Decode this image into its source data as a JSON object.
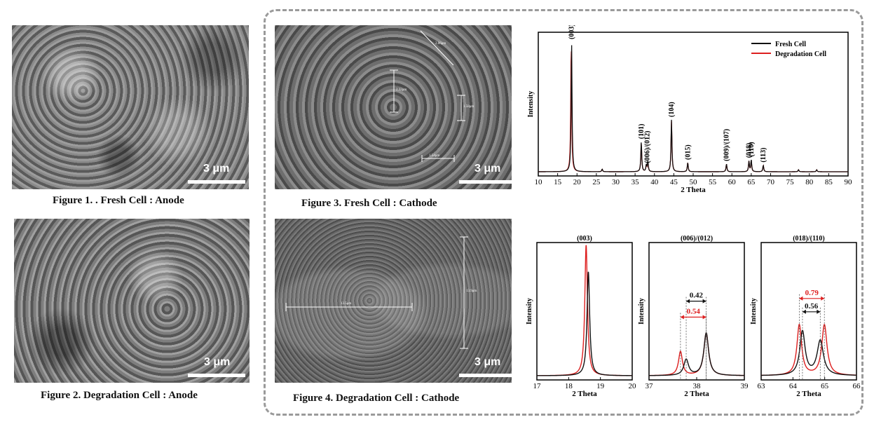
{
  "colors": {
    "fresh": "#111111",
    "degradation": "#dd1f1f",
    "frame": "#9a9a9a"
  },
  "figure1": {
    "caption": "Figure 1. . Fresh Cell : Anode",
    "scale_label": "3 μm"
  },
  "figure2": {
    "caption": "Figure 2. Degradation Cell : Anode",
    "scale_label": "3 μm"
  },
  "figure3": {
    "caption": "Figure 3. Fresh Cell : Cathode",
    "scale_label": "3 μm",
    "measurements": [
      "2.06μm",
      "2.32μm",
      "1.58μm",
      "1.54μm"
    ]
  },
  "figure4": {
    "caption": "Figure 4. Degradation Cell : Cathode",
    "scale_label": "3 μm",
    "measurements": [
      "13.5μm",
      "13.9μm"
    ]
  },
  "chart_data": [
    {
      "type": "line",
      "title": "",
      "xlabel": "2 Theta",
      "ylabel": "Intensity",
      "xlim": [
        10,
        90
      ],
      "xticks": [
        10,
        15,
        20,
        25,
        30,
        35,
        40,
        45,
        50,
        55,
        60,
        65,
        70,
        75,
        80,
        85,
        90
      ],
      "legend_position": "top-right",
      "series": [
        {
          "name": "Fresh Cell",
          "color": "#111111",
          "peaks": [
            [
              18.6,
              1.0
            ],
            [
              26.5,
              0.02
            ],
            [
              36.6,
              0.23
            ],
            [
              37.9,
              0.05
            ],
            [
              38.3,
              0.08
            ],
            [
              44.4,
              0.4
            ],
            [
              48.6,
              0.07
            ],
            [
              58.6,
              0.06
            ],
            [
              64.4,
              0.08
            ],
            [
              65.0,
              0.09
            ],
            [
              68.1,
              0.05
            ],
            [
              77.2,
              0.015
            ],
            [
              81.9,
              0.015
            ]
          ]
        },
        {
          "name": "Degradation Cell",
          "color": "#dd1f1f",
          "peaks": [
            [
              18.5,
              0.98
            ],
            [
              26.5,
              0.02
            ],
            [
              36.6,
              0.22
            ],
            [
              37.9,
              0.05
            ],
            [
              38.3,
              0.07
            ],
            [
              44.4,
              0.39
            ],
            [
              48.6,
              0.07
            ],
            [
              58.6,
              0.06
            ],
            [
              64.4,
              0.08
            ],
            [
              65.0,
              0.08
            ],
            [
              68.1,
              0.05
            ],
            [
              77.2,
              0.015
            ],
            [
              81.9,
              0.015
            ]
          ]
        }
      ],
      "annotations": [
        {
          "label": "(003)",
          "x": 18.6
        },
        {
          "label": "(101)",
          "x": 36.6
        },
        {
          "label": "(006)/(012)",
          "x": 38.1
        },
        {
          "label": "(104)",
          "x": 44.4
        },
        {
          "label": "(015)",
          "x": 48.6
        },
        {
          "label": "(009)/(107)",
          "x": 58.6
        },
        {
          "label": "(018)",
          "x": 64.4
        },
        {
          "label": "(110)",
          "x": 65.0
        },
        {
          "label": "(113)",
          "x": 68.1
        }
      ]
    },
    {
      "type": "line",
      "title": "(003)",
      "xlabel": "2 Theta",
      "ylabel": "Intensity",
      "xlim": [
        17,
        20
      ],
      "xticks": [
        17,
        18,
        19,
        20
      ],
      "series": [
        {
          "name": "Fresh Cell",
          "color": "#111111",
          "peaks": [
            [
              18.62,
              0.78,
              0.05
            ]
          ]
        },
        {
          "name": "Degradation Cell",
          "color": "#dd1f1f",
          "peaks": [
            [
              18.55,
              0.98,
              0.05
            ]
          ]
        }
      ],
      "annotations": []
    },
    {
      "type": "line",
      "title": "(006)/(012)",
      "xlabel": "2 Theta",
      "ylabel": "Intensity",
      "xlim": [
        37,
        39
      ],
      "xticks": [
        37,
        38,
        39
      ],
      "series": [
        {
          "name": "Fresh Cell",
          "color": "#111111",
          "peaks": [
            [
              37.78,
              0.12,
              0.06
            ],
            [
              38.2,
              0.32,
              0.06
            ]
          ]
        },
        {
          "name": "Degradation Cell",
          "color": "#dd1f1f",
          "peaks": [
            [
              37.66,
              0.18,
              0.05
            ],
            [
              38.2,
              0.32,
              0.06
            ]
          ]
        }
      ],
      "annotations": [
        {
          "label": "0.42",
          "color": "#111111",
          "x1": 37.78,
          "x2": 38.2,
          "y": 0.56
        },
        {
          "label": "0.54",
          "color": "#dd1f1f",
          "x1": 37.66,
          "x2": 38.2,
          "y": 0.44
        }
      ]
    },
    {
      "type": "line",
      "title": "(018)/(110)",
      "xlabel": "2 Theta",
      "ylabel": "Intensity",
      "xlim": [
        63,
        66
      ],
      "xticks": [
        63,
        64,
        65,
        66
      ],
      "series": [
        {
          "name": "Fresh Cell",
          "color": "#111111",
          "peaks": [
            [
              64.3,
              0.33,
              0.1
            ],
            [
              64.86,
              0.26,
              0.12
            ]
          ]
        },
        {
          "name": "Degradation Cell",
          "color": "#dd1f1f",
          "peaks": [
            [
              64.2,
              0.38,
              0.09
            ],
            [
              64.99,
              0.38,
              0.1
            ]
          ]
        }
      ],
      "annotations": [
        {
          "label": "0.56",
          "color": "#111111",
          "x1": 64.3,
          "x2": 64.86,
          "y": 0.48
        },
        {
          "label": "0.79",
          "color": "#dd1f1f",
          "x1": 64.2,
          "x2": 64.99,
          "y": 0.58
        }
      ]
    }
  ]
}
